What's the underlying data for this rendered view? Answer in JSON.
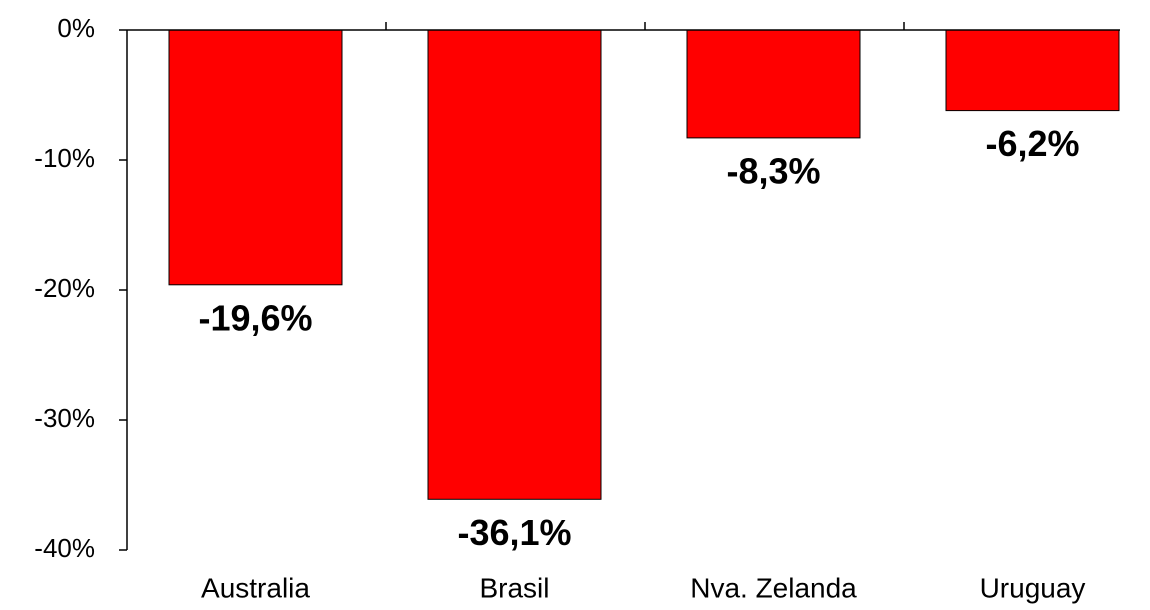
{
  "chart_data": {
    "type": "bar",
    "categories": [
      "Australia",
      "Brasil",
      "Nva. Zelanda",
      "Uruguay"
    ],
    "values": [
      -19.6,
      -36.1,
      -8.3,
      -6.2
    ],
    "value_labels": [
      "-19,6%",
      "-36,1%",
      "-8,3%",
      "-6,2%"
    ],
    "color": "#ff0000",
    "ylim": [
      -40,
      0
    ],
    "yticks": [
      {
        "value": 0,
        "label": "0%"
      },
      {
        "value": -10,
        "label": "-10%"
      },
      {
        "value": -20,
        "label": "-20%"
      },
      {
        "value": -30,
        "label": "-30%"
      },
      {
        "value": -40,
        "label": "-40%"
      }
    ],
    "grid": false
  }
}
